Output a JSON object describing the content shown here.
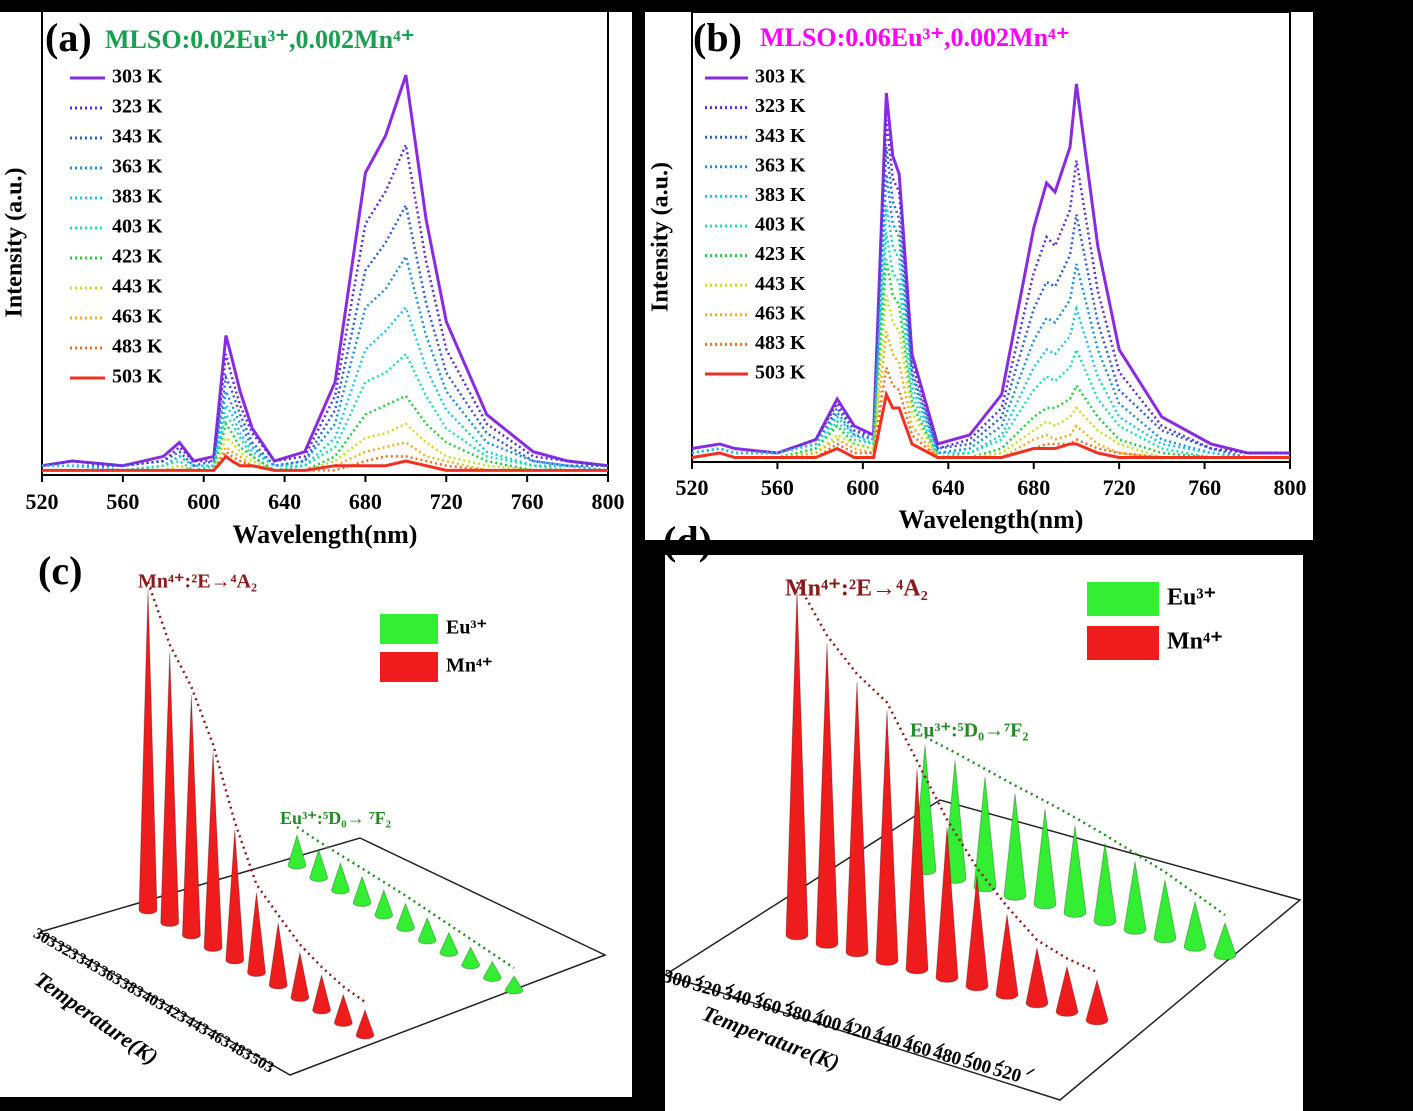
{
  "chart_data": [
    {
      "type": "line",
      "panel_label": "(a)",
      "title": "MLSO:0.02Eu³⁺,0.002Mn⁴⁺",
      "title_color": "#1aa050",
      "xlabel": "Wavelength(nm)",
      "ylabel": "Intensity (a.u.)",
      "x": [
        520,
        535,
        560,
        580,
        588,
        595,
        605,
        611,
        614,
        618,
        624,
        635,
        650,
        665,
        680,
        690,
        700,
        710,
        720,
        740,
        763,
        780,
        800
      ],
      "xlim": [
        520,
        800
      ],
      "xticks": [
        520,
        560,
        600,
        640,
        680,
        720,
        760,
        800
      ],
      "ylim": [
        0,
        100
      ],
      "series": [
        {
          "name": "303 K",
          "color": "#8a2be2",
          "style": "solid",
          "values": [
            2,
            3,
            2,
            4,
            7,
            3,
            4,
            30,
            25,
            18,
            10,
            3,
            5,
            20,
            65,
            73,
            86,
            55,
            33,
            13,
            5,
            3,
            2
          ]
        },
        {
          "name": "323 K",
          "color": "#5a2ed8",
          "style": "dotted",
          "values": [
            2,
            3,
            2,
            3,
            6,
            3,
            3,
            26,
            21,
            15,
            9,
            3,
            4,
            17,
            54,
            61,
            71,
            46,
            27,
            11,
            4,
            3,
            2
          ]
        },
        {
          "name": "343 K",
          "color": "#2f5fd8",
          "style": "dotted",
          "values": [
            2,
            2,
            2,
            3,
            5,
            2,
            3,
            21,
            18,
            13,
            7,
            2,
            3,
            14,
            44,
            50,
            58,
            37,
            22,
            9,
            3,
            2,
            2
          ]
        },
        {
          "name": "363 K",
          "color": "#1e90e0",
          "style": "dotted",
          "values": [
            2,
            2,
            1,
            2,
            4,
            2,
            2,
            18,
            15,
            11,
            6,
            2,
            3,
            11,
            36,
            40,
            47,
            30,
            18,
            7,
            3,
            2,
            1
          ]
        },
        {
          "name": "383 K",
          "color": "#20c8e8",
          "style": "dotted",
          "values": [
            2,
            2,
            1,
            2,
            4,
            2,
            2,
            15,
            13,
            9,
            5,
            2,
            2,
            8,
            27,
            31,
            36,
            23,
            14,
            5,
            2,
            2,
            1
          ]
        },
        {
          "name": "403 K",
          "color": "#20e0b0",
          "style": "dotted",
          "values": [
            1,
            1,
            1,
            2,
            3,
            1,
            2,
            13,
            11,
            8,
            4,
            1,
            2,
            6,
            20,
            22,
            26,
            17,
            10,
            4,
            2,
            1,
            1
          ]
        },
        {
          "name": "423 K",
          "color": "#22d040",
          "style": "dotted",
          "values": [
            1,
            1,
            1,
            1,
            2,
            1,
            1,
            11,
            9,
            6,
            4,
            1,
            1,
            4,
            13,
            15,
            17,
            11,
            7,
            3,
            1,
            1,
            1
          ]
        },
        {
          "name": "443 K",
          "color": "#c8e020",
          "style": "dotted",
          "values": [
            1,
            1,
            1,
            1,
            2,
            1,
            1,
            8,
            7,
            5,
            3,
            1,
            1,
            3,
            8,
            9,
            11,
            7,
            4,
            2,
            1,
            1,
            1
          ]
        },
        {
          "name": "463 K",
          "color": "#f0b020",
          "style": "dotted",
          "values": [
            1,
            1,
            1,
            1,
            1,
            1,
            1,
            6,
            5,
            4,
            2,
            1,
            1,
            2,
            5,
            6,
            7,
            4,
            3,
            1,
            1,
            1,
            1
          ]
        },
        {
          "name": "483 K",
          "color": "#f07020",
          "style": "dotted",
          "values": [
            1,
            1,
            1,
            1,
            1,
            1,
            1,
            5,
            4,
            3,
            2,
            1,
            1,
            1,
            3,
            4,
            4,
            3,
            2,
            1,
            1,
            1,
            1
          ]
        },
        {
          "name": "503 K",
          "color": "#f03020",
          "style": "solid",
          "values": [
            1,
            1,
            1,
            1,
            1,
            1,
            1,
            4,
            3,
            2,
            2,
            1,
            1,
            2,
            2,
            2,
            3,
            2,
            1,
            1,
            1,
            1,
            1
          ]
        }
      ]
    },
    {
      "type": "line",
      "panel_label": "(b)",
      "title": "MLSO:0.06Eu³⁺,0.002Mn⁴⁺",
      "title_color": "#ff00ff",
      "xlabel": "Wavelength(nm)",
      "ylabel": "Intensity (a.u.)",
      "x": [
        520,
        533,
        540,
        560,
        578,
        588,
        596,
        605,
        611,
        614,
        617,
        623,
        635,
        650,
        665,
        680,
        686,
        690,
        697,
        700,
        710,
        720,
        740,
        763,
        780,
        800
      ],
      "xlim": [
        520,
        800
      ],
      "xticks": [
        520,
        560,
        600,
        640,
        680,
        720,
        760,
        800
      ],
      "ylim": [
        0,
        100
      ],
      "series": [
        {
          "name": "303 K",
          "color": "#8a2be2",
          "style": "solid",
          "values": [
            3,
            4,
            3,
            2,
            5,
            14,
            8,
            6,
            82,
            68,
            64,
            24,
            4,
            6,
            15,
            52,
            62,
            60,
            70,
            84,
            48,
            25,
            10,
            4,
            2,
            2
          ]
        },
        {
          "name": "323 K",
          "color": "#5a2ed8",
          "style": "dotted",
          "values": [
            2,
            3,
            2,
            2,
            5,
            13,
            7,
            6,
            76,
            63,
            60,
            22,
            3,
            5,
            12,
            42,
            50,
            48,
            56,
            67,
            38,
            20,
            8,
            3,
            2,
            2
          ]
        },
        {
          "name": "343 K",
          "color": "#2f5fd8",
          "style": "dotted",
          "values": [
            2,
            3,
            2,
            2,
            4,
            12,
            7,
            5,
            70,
            58,
            54,
            20,
            3,
            4,
            10,
            34,
            40,
            39,
            46,
            55,
            31,
            16,
            7,
            3,
            1,
            1
          ]
        },
        {
          "name": "363 K",
          "color": "#1e90e0",
          "style": "dotted",
          "values": [
            2,
            3,
            2,
            2,
            4,
            11,
            6,
            5,
            64,
            53,
            50,
            19,
            2,
            3,
            8,
            27,
            32,
            31,
            36,
            44,
            25,
            13,
            5,
            2,
            1,
            1
          ]
        },
        {
          "name": "383 K",
          "color": "#20c8e8",
          "style": "dotted",
          "values": [
            2,
            3,
            2,
            2,
            4,
            10,
            6,
            4,
            57,
            48,
            45,
            17,
            2,
            2,
            6,
            21,
            25,
            24,
            28,
            34,
            19,
            10,
            4,
            2,
            1,
            1
          ]
        },
        {
          "name": "403 K",
          "color": "#20e0b0",
          "style": "dotted",
          "values": [
            1,
            2,
            1,
            1,
            3,
            9,
            5,
            4,
            51,
            42,
            40,
            15,
            1,
            2,
            5,
            16,
            19,
            18,
            21,
            25,
            14,
            8,
            3,
            1,
            1,
            1
          ]
        },
        {
          "name": "423 K",
          "color": "#22d040",
          "style": "dotted",
          "values": [
            1,
            2,
            1,
            1,
            3,
            8,
            4,
            3,
            45,
            37,
            35,
            13,
            1,
            1,
            3,
            10,
            12,
            12,
            14,
            17,
            10,
            5,
            2,
            1,
            1,
            1
          ]
        },
        {
          "name": "443 K",
          "color": "#c8e020",
          "style": "dotted",
          "values": [
            1,
            2,
            1,
            1,
            2,
            6,
            4,
            3,
            37,
            31,
            29,
            11,
            1,
            1,
            2,
            7,
            9,
            8,
            10,
            12,
            7,
            4,
            1,
            1,
            1,
            1
          ]
        },
        {
          "name": "463 K",
          "color": "#f0b020",
          "style": "dotted",
          "values": [
            1,
            2,
            1,
            1,
            2,
            5,
            3,
            2,
            29,
            24,
            22,
            8,
            1,
            1,
            1,
            5,
            6,
            5,
            6,
            8,
            4,
            2,
            1,
            1,
            1,
            1
          ]
        },
        {
          "name": "483 K",
          "color": "#f07020",
          "style": "dotted",
          "values": [
            1,
            2,
            1,
            1,
            1,
            4,
            2,
            2,
            21,
            17,
            16,
            6,
            1,
            1,
            1,
            3,
            4,
            4,
            4,
            5,
            3,
            2,
            1,
            1,
            1,
            1
          ]
        },
        {
          "name": "503 K",
          "color": "#f03020",
          "style": "solid",
          "values": [
            1,
            2,
            1,
            1,
            1,
            3,
            1,
            1,
            15,
            12,
            12,
            4,
            1,
            1,
            1,
            3,
            3,
            3,
            4,
            4,
            2,
            1,
            1,
            1,
            1,
            1
          ]
        }
      ]
    },
    {
      "type": "cone3d",
      "panel_label": "(c)",
      "xlabel": "Temperature(K)",
      "categories": [
        "303",
        "323",
        "343",
        "363",
        "383",
        "403",
        "423",
        "443",
        "463",
        "483",
        "503"
      ],
      "series": [
        {
          "name": "Eu³⁺",
          "color": "#33ee33",
          "values": [
            30,
            28,
            27,
            26,
            25,
            24,
            22,
            20,
            18,
            16,
            14
          ]
        },
        {
          "name": "Mn⁴⁺",
          "color": "#ee1c1c",
          "values": [
            320,
            270,
            240,
            195,
            130,
            80,
            62,
            45,
            35,
            28,
            25
          ]
        }
      ],
      "annotations": [
        {
          "text": "Mn⁴⁺:²E→⁴A₂",
          "color": "#8b1a1a"
        },
        {
          "text": "Eu³⁺:⁵D₀→ ⁷F₂",
          "color": "#228b22"
        }
      ]
    },
    {
      "type": "cone3d",
      "panel_label": "(d)",
      "xlabel": "Temperature(K)",
      "x": [
        303,
        323,
        343,
        363,
        383,
        403,
        423,
        443,
        463,
        483,
        503
      ],
      "xlim": [
        300,
        520
      ],
      "xticks": [
        300,
        320,
        340,
        360,
        380,
        400,
        420,
        440,
        460,
        480,
        500,
        520
      ],
      "series": [
        {
          "name": "Eu³⁺",
          "color": "#33ee33",
          "values": [
            125,
            118,
            110,
            102,
            95,
            87,
            78,
            68,
            58,
            45,
            32
          ]
        },
        {
          "name": "Mn⁴⁺",
          "color": "#ee1c1c",
          "values": [
            345,
            300,
            270,
            250,
            200,
            150,
            110,
            80,
            55,
            45,
            40
          ]
        }
      ],
      "annotations": [
        {
          "text": "Mn⁴⁺:²E→⁴A₂",
          "color": "#8b1a1a"
        },
        {
          "text": "Eu³⁺:⁵D₀→⁷F₂",
          "color": "#228b22"
        }
      ]
    }
  ]
}
